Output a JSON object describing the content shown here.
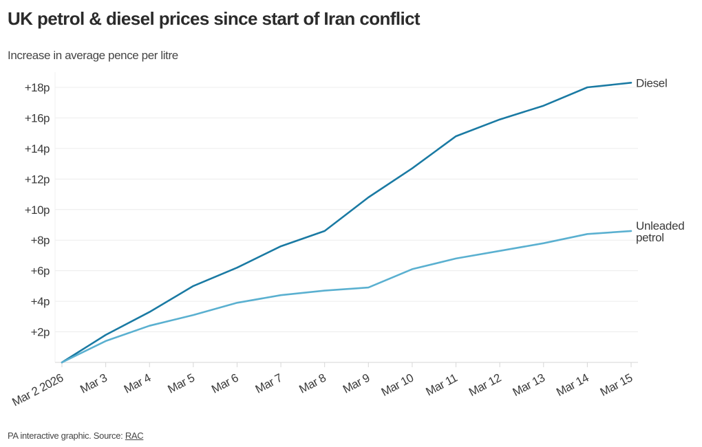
{
  "header": {
    "title": "UK petrol & diesel prices since start of Iran conflict",
    "subtitle": "Increase in average pence per litre"
  },
  "footer": {
    "text": "PA interactive graphic. Source: ",
    "source_link": "RAC"
  },
  "chart_data": {
    "type": "line",
    "title": "UK petrol & diesel prices since start of Iran conflict",
    "subtitle": "Increase in average pence per litre",
    "xlabel": "",
    "ylabel": "",
    "x": [
      "Mar 2 2026",
      "Mar 3",
      "Mar 4",
      "Mar 5",
      "Mar 6",
      "Mar 7",
      "Mar 8",
      "Mar 9",
      "Mar 10",
      "Mar 11",
      "Mar 12",
      "Mar 13",
      "Mar 14",
      "Mar 15"
    ],
    "ylim": [
      0,
      18.5
    ],
    "yticks": [
      2,
      4,
      6,
      8,
      10,
      12,
      14,
      16,
      18
    ],
    "ytick_labels": [
      "+2p",
      "+4p",
      "+6p",
      "+8p",
      "+10p",
      "+12p",
      "+14p",
      "+16p",
      "+18p"
    ],
    "grid": true,
    "legend": "inline-right",
    "series": [
      {
        "name": "Diesel",
        "label_lines": [
          "Diesel"
        ],
        "color": "#1a7aa3",
        "values": [
          0,
          1.8,
          3.3,
          5.0,
          6.2,
          7.6,
          8.6,
          10.8,
          12.7,
          14.8,
          15.9,
          16.8,
          18.0,
          18.3
        ]
      },
      {
        "name": "Unleaded petrol",
        "label_lines": [
          "Unleaded",
          "petrol"
        ],
        "color": "#5ab0d0",
        "values": [
          0,
          1.4,
          2.4,
          3.1,
          3.9,
          4.4,
          4.7,
          4.9,
          6.1,
          6.8,
          7.3,
          7.8,
          8.4,
          8.6
        ]
      }
    ]
  }
}
